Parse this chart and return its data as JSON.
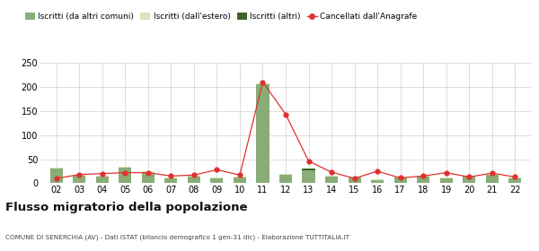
{
  "years": [
    "02",
    "03",
    "04",
    "05",
    "06",
    "07",
    "08",
    "09",
    "10",
    "11",
    "12",
    "13",
    "14",
    "15",
    "16",
    "17",
    "18",
    "19",
    "20",
    "21",
    "22"
  ],
  "iscritti_altri_comuni": [
    30,
    15,
    14,
    32,
    22,
    10,
    13,
    10,
    12,
    205,
    18,
    26,
    14,
    12,
    7,
    12,
    14,
    10,
    15,
    17,
    10
  ],
  "iscritti_estero": [
    33,
    17,
    16,
    35,
    24,
    12,
    15,
    12,
    14,
    207,
    19,
    27,
    16,
    13,
    8,
    13,
    15,
    11,
    16,
    18,
    12
  ],
  "iscritti_altri": [
    0,
    0,
    0,
    0,
    0,
    0,
    0,
    0,
    0,
    0,
    0,
    4,
    0,
    0,
    0,
    0,
    0,
    0,
    0,
    0,
    0
  ],
  "cancellati": [
    10,
    18,
    20,
    22,
    22,
    15,
    17,
    28,
    17,
    210,
    143,
    46,
    23,
    10,
    25,
    11,
    15,
    22,
    13,
    21,
    13
  ],
  "bar_color_main": "#8aad78",
  "bar_color_light": "#d4e6b8",
  "bar_color_dark": "#3a6629",
  "line_color": "#e03030",
  "line_marker_color": "#e03030",
  "background_color": "#ffffff",
  "grid_color": "#d0d0d0",
  "title": "Flusso migratorio della popolazione",
  "subtitle": "COMUNE DI SENERCHIA (AV) - Dati ISTAT (bilancio demografico 1 gen-31 dic) - Elaborazione TUTTITALIA.IT",
  "legend_labels": [
    "Iscritti (da altri comuni)",
    "Iscritti (dall'estero)",
    "Iscritti (altri)",
    "Cancellati dall'Anagrafe"
  ],
  "ylim": [
    0,
    250
  ],
  "yticks": [
    0,
    50,
    100,
    150,
    200,
    250
  ]
}
